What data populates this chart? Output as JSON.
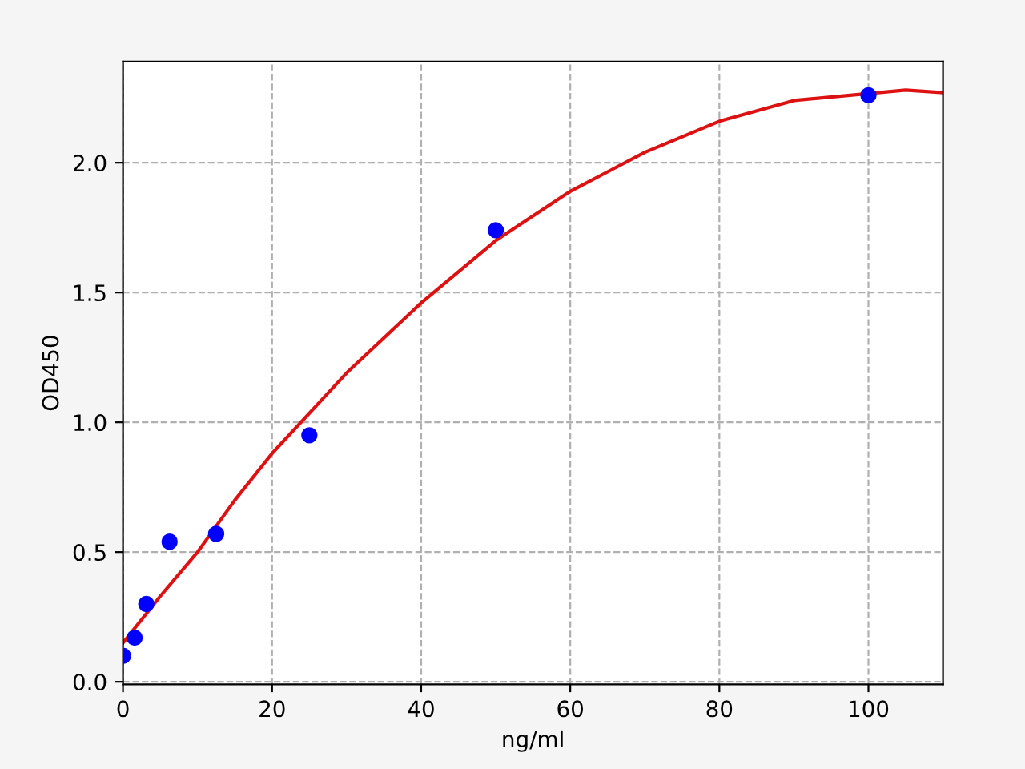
{
  "chart_data": {
    "type": "scatter",
    "xlabel": "ng/ml",
    "ylabel": "OD450",
    "xlim": [
      0,
      110
    ],
    "ylim": [
      -0.01,
      2.39
    ],
    "xticks": [
      0,
      20,
      40,
      60,
      80,
      100
    ],
    "yticks": [
      {
        "value": 0,
        "label": "0.0"
      },
      {
        "value": 0.5,
        "label": "0.5"
      },
      {
        "value": 1.0,
        "label": "1.0"
      },
      {
        "value": 1.5,
        "label": "1.5"
      },
      {
        "value": 2.0,
        "label": "2.0"
      }
    ],
    "grid": true,
    "series": [
      {
        "marker": "circle",
        "color": "#0000ff",
        "x": [
          0,
          1.56,
          3.125,
          6.25,
          12.5,
          25,
          50,
          100
        ],
        "values": [
          0.1,
          0.17,
          0.3,
          0.54,
          0.57,
          0.95,
          1.74,
          2.26
        ]
      },
      {
        "type": "line",
        "marker": "none",
        "line_style": "solid",
        "color": "#dd1111",
        "x": [
          0,
          5,
          10,
          15,
          20,
          30,
          40,
          50,
          60,
          70,
          80,
          90,
          105,
          110
        ],
        "values": [
          0.15,
          0.33,
          0.5,
          0.7,
          0.88,
          1.19,
          1.46,
          1.7,
          1.89,
          2.04,
          2.16,
          2.24,
          2.28,
          2.27
        ]
      }
    ]
  }
}
